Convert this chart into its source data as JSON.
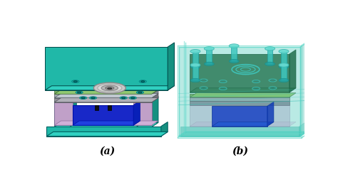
{
  "fig_width": 4.74,
  "fig_height": 2.49,
  "dpi": 100,
  "bg_color": "#ffffff",
  "label_a": "(a)",
  "label_b": "(b)",
  "label_fontsize": 10,
  "teal_front": "#20b8a8",
  "teal_top": "#30d0c0",
  "teal_right": "#159080",
  "teal_bottom": "#1a9888",
  "green_layer": "#7ab060",
  "gray_layer1": "#a0a8b0",
  "gray_layer2": "#909098",
  "purple_wall": "#c0a0c8",
  "blue_cavity": "#1828c8",
  "blue_cavity2": "#0010a0",
  "white_bg": "#ffffff"
}
